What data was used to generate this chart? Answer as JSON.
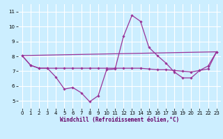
{
  "xlabel": "Windchill (Refroidissement éolien,°C)",
  "background_color": "#cceeff",
  "grid_color": "#ffffff",
  "line_color": "#993399",
  "xlim": [
    -0.5,
    23.5
  ],
  "ylim": [
    4.5,
    11.5
  ],
  "xticks": [
    0,
    1,
    2,
    3,
    4,
    5,
    6,
    7,
    8,
    9,
    10,
    11,
    12,
    13,
    14,
    15,
    16,
    17,
    18,
    19,
    20,
    21,
    22,
    23
  ],
  "yticks": [
    5,
    6,
    7,
    8,
    9,
    10,
    11
  ],
  "series1_x": [
    0,
    1,
    2,
    3,
    4,
    5,
    6,
    7,
    8,
    9,
    10,
    11,
    12,
    13,
    14,
    15,
    16,
    17,
    18,
    19,
    20,
    21,
    22,
    23
  ],
  "series1_y": [
    8.05,
    7.4,
    7.2,
    7.2,
    6.6,
    5.8,
    5.9,
    5.55,
    4.95,
    5.35,
    7.1,
    7.15,
    9.35,
    10.75,
    10.35,
    8.6,
    8.05,
    7.55,
    6.95,
    6.55,
    6.55,
    7.05,
    7.35,
    8.3
  ],
  "series2_x": [
    0,
    1,
    2,
    3,
    4,
    5,
    6,
    7,
    8,
    9,
    10,
    11,
    12,
    13,
    14,
    15,
    16,
    17,
    18,
    19,
    20,
    21,
    22,
    23
  ],
  "series2_y": [
    8.05,
    7.4,
    7.2,
    7.2,
    7.2,
    7.2,
    7.2,
    7.2,
    7.2,
    7.2,
    7.2,
    7.2,
    7.2,
    7.2,
    7.2,
    7.15,
    7.1,
    7.1,
    7.05,
    7.0,
    6.95,
    7.05,
    7.15,
    8.3
  ],
  "series3_x": [
    0,
    23
  ],
  "series3_y": [
    8.05,
    8.3
  ],
  "xlabel_fontsize": 5.5,
  "tick_fontsize": 5.0
}
